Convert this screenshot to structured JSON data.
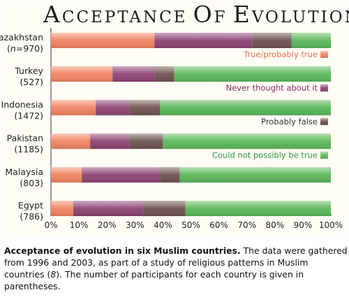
{
  "title": "Acceptance of Evolution",
  "caption": {
    "bold": "Acceptance of evolution in six Muslim countries.",
    "text_1": " The data were gathered from 1996 and 2003, as part of a study of religious patterns in Muslim countries (",
    "ref": "8",
    "text_2": "). The number of participants for each country is given in parentheses."
  },
  "chart_data": {
    "type": "bar",
    "orientation": "horizontal",
    "stacked": true,
    "title": "Acceptance of Evolution",
    "categories": [
      {
        "name": "Kazakhstan",
        "n": "(n=970)"
      },
      {
        "name": "Turkey",
        "n": "(527)"
      },
      {
        "name": "Indonesia",
        "n": "(1472)"
      },
      {
        "name": "Pakistan",
        "n": "(1185)"
      },
      {
        "name": "Malaysia",
        "n": "(803)"
      },
      {
        "name": "Egypt",
        "n": "(786)"
      }
    ],
    "series": [
      {
        "name": "True/probably true",
        "color": "#f08462",
        "label_color": "#e8704a",
        "values": [
          37,
          22,
          16,
          14,
          11,
          8
        ]
      },
      {
        "name": "Never thought about it",
        "color": "#8e4474",
        "label_color": "#7e2e63",
        "values": [
          35,
          15,
          12,
          14,
          28,
          25
        ]
      },
      {
        "name": "Probably false",
        "color": "#6e5450",
        "label_color": "#333333",
        "values": [
          14,
          7,
          11,
          12,
          7,
          15
        ]
      },
      {
        "name": "Could not possibly be true",
        "color": "#5cb85a",
        "label_color": "#2f9a3c",
        "values": [
          14,
          56,
          61,
          60,
          54,
          52
        ]
      }
    ],
    "xlim": [
      0,
      100
    ],
    "xticks": [
      "0%",
      "10%",
      "20%",
      "30%",
      "40%",
      "50%",
      "60%",
      "70%",
      "80%",
      "90%",
      "100%"
    ],
    "legend": "inline right, between bars"
  }
}
